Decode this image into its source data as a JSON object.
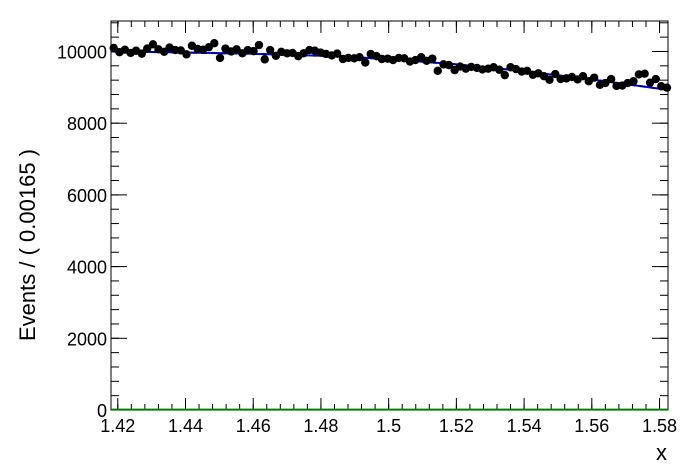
{
  "chart_data": {
    "type": "scatter",
    "title": "",
    "xlabel": "x",
    "ylabel": "Events / ( 0.00165 )",
    "xlim": [
      1.418,
      1.5825
    ],
    "ylim": [
      0,
      10850
    ],
    "x_ticks": [
      1.42,
      1.44,
      1.46,
      1.48,
      1.5,
      1.52,
      1.54,
      1.56,
      1.58
    ],
    "x_tick_labels": [
      "1.42",
      "1.44",
      "1.46",
      "1.48",
      "1.5",
      "1.52",
      "1.54",
      "1.56",
      "1.58"
    ],
    "y_ticks": [
      0,
      2000,
      4000,
      6000,
      8000,
      10000
    ],
    "y_tick_labels": [
      "0",
      "2000",
      "4000",
      "6000",
      "8000",
      "10000"
    ],
    "grid": false,
    "legend": "none",
    "colors": {
      "points": "#000000",
      "fit_total": "#0000ff",
      "fit_dashed": "#000080",
      "signal": "#007a00"
    },
    "series": [
      {
        "kind": "points",
        "x": [
          1.4188,
          1.4205,
          1.4221,
          1.4238,
          1.4254,
          1.4271,
          1.4287,
          1.4304,
          1.432,
          1.4337,
          1.4353,
          1.437,
          1.4386,
          1.4403,
          1.4419,
          1.4436,
          1.4452,
          1.4469,
          1.4485,
          1.4502,
          1.4518,
          1.4535,
          1.4551,
          1.4568,
          1.4584,
          1.4601,
          1.4617,
          1.4634,
          1.465,
          1.4667,
          1.4683,
          1.47,
          1.4716,
          1.4733,
          1.4749,
          1.4766,
          1.4782,
          1.4799,
          1.4815,
          1.4832,
          1.4848,
          1.4865,
          1.4881,
          1.4898,
          1.4914,
          1.4931,
          1.4947,
          1.4964,
          1.498,
          1.4997,
          1.5013,
          1.503,
          1.5046,
          1.5063,
          1.5079,
          1.5096,
          1.5112,
          1.5129,
          1.5145,
          1.5162,
          1.5178,
          1.5195,
          1.5211,
          1.5228,
          1.5244,
          1.5261,
          1.5277,
          1.5294,
          1.531,
          1.5327,
          1.5343,
          1.536,
          1.5376,
          1.5393,
          1.5409,
          1.5426,
          1.5442,
          1.5459,
          1.5475,
          1.5492,
          1.5508,
          1.5525,
          1.5541,
          1.5558,
          1.5574,
          1.5591,
          1.5607,
          1.5624,
          1.564,
          1.5657,
          1.5673,
          1.569,
          1.5706,
          1.5723,
          1.5739,
          1.5756,
          1.5772,
          1.5789,
          1.5805,
          1.5822
        ],
        "y": [
          10100,
          9980,
          10050,
          9960,
          10020,
          9940,
          10080,
          10200,
          10060,
          9990,
          10110,
          10040,
          10030,
          9920,
          10160,
          10070,
          10050,
          10120,
          10230,
          9820,
          10080,
          10000,
          10060,
          9950,
          10040,
          10010,
          10180,
          9780,
          10040,
          9880,
          9990,
          9950,
          9960,
          9870,
          9950,
          10040,
          10020,
          9970,
          9930,
          9890,
          9940,
          9790,
          9820,
          9810,
          9840,
          9690,
          9930,
          9870,
          9790,
          9800,
          9760,
          9820,
          9810,
          9720,
          9760,
          9840,
          9740,
          9800,
          9460,
          9640,
          9620,
          9480,
          9580,
          9520,
          9570,
          9540,
          9500,
          9520,
          9560,
          9490,
          9340,
          9560,
          9510,
          9440,
          9460,
          9350,
          9390,
          9310,
          9210,
          9370,
          9230,
          9250,
          9290,
          9220,
          9310,
          9170,
          9270,
          9070,
          9120,
          9230,
          9040,
          9050,
          9120,
          9170,
          9360,
          9380,
          9130,
          9230,
          9030,
          8990
        ],
        "errors": 100
      },
      {
        "kind": "line",
        "style": "solid",
        "x": [
          1.418,
          1.43,
          1.44,
          1.46,
          1.48,
          1.5,
          1.52,
          1.54,
          1.56,
          1.5825
        ],
        "y": [
          10000,
          9985,
          9970,
          9935,
          9880,
          9790,
          9640,
          9450,
          9220,
          8930
        ]
      },
      {
        "kind": "line",
        "style": "dashed",
        "x": [
          1.418,
          1.43,
          1.44,
          1.46,
          1.48,
          1.5,
          1.52,
          1.54,
          1.56,
          1.5825
        ],
        "y": [
          10000,
          9985,
          9970,
          9935,
          9880,
          9790,
          9640,
          9450,
          9220,
          8930
        ]
      },
      {
        "kind": "line",
        "style": "solid",
        "x": [
          1.418,
          1.5825
        ],
        "y": [
          10,
          10
        ]
      }
    ]
  }
}
